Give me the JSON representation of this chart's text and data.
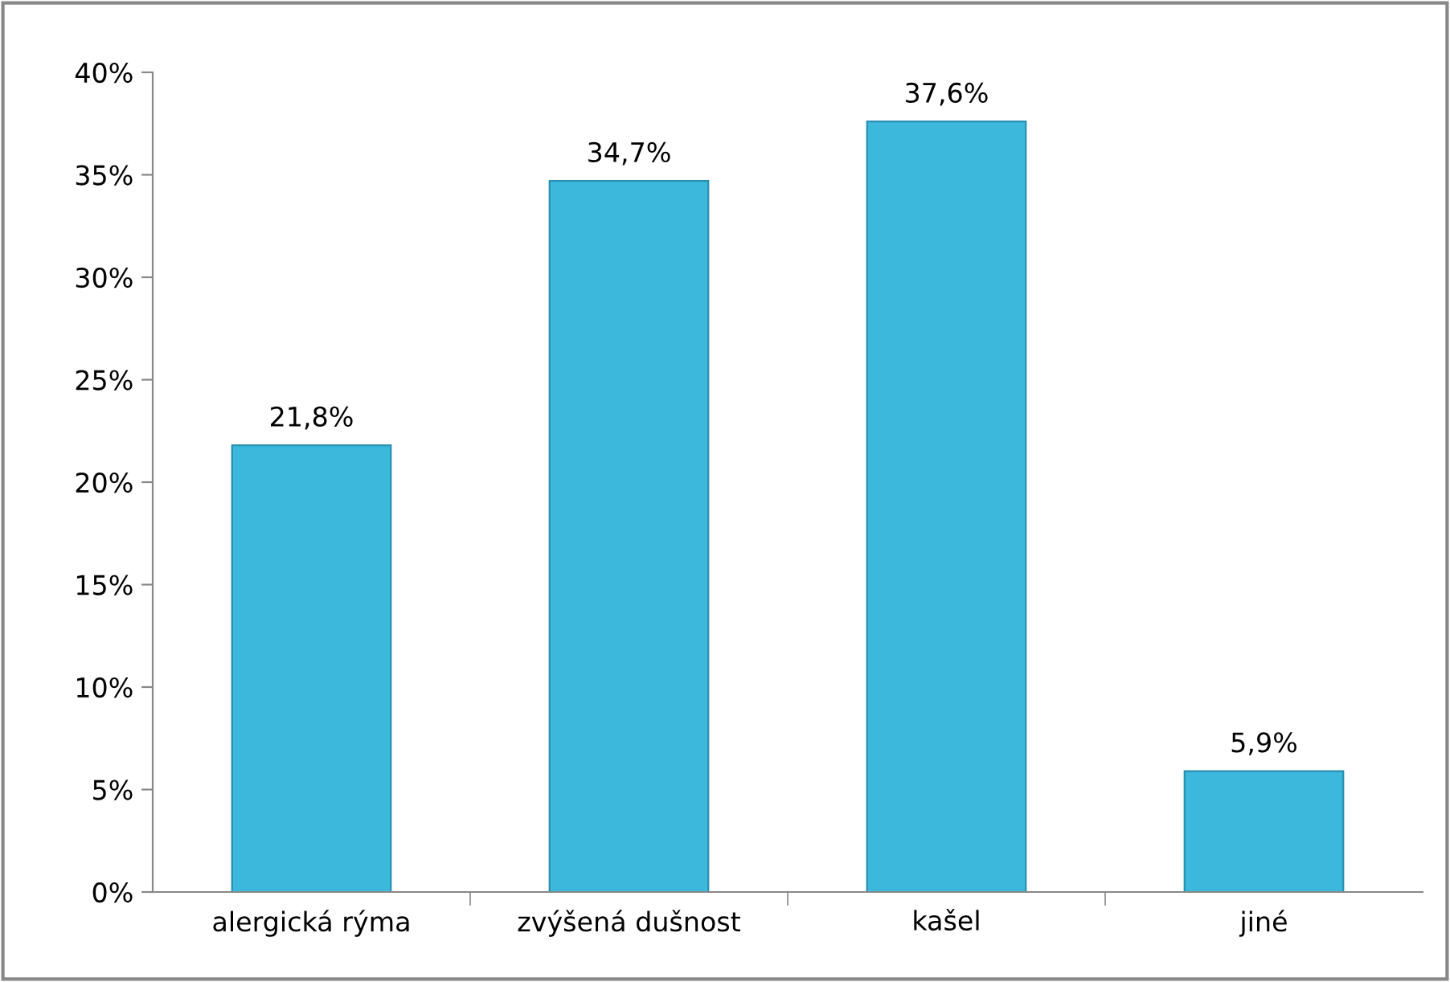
{
  "chart_data": {
    "type": "bar",
    "categories": [
      "alergická rýma",
      "zvýšená dušnost",
      "kašel",
      "jiné"
    ],
    "values": [
      21.8,
      34.7,
      37.6,
      5.9
    ],
    "value_labels": [
      "21,8%",
      "34,7%",
      "37,6%",
      "5,9%"
    ],
    "color": "#3bb8dc",
    "ylim": [
      0,
      40
    ],
    "yticks": [
      {
        "value": 0,
        "label": "0%"
      },
      {
        "value": 5,
        "label": "5%"
      },
      {
        "value": 10,
        "label": "10%"
      },
      {
        "value": 15,
        "label": "15%"
      },
      {
        "value": 20,
        "label": "20%"
      },
      {
        "value": 25,
        "label": "25%"
      },
      {
        "value": 30,
        "label": "30%"
      },
      {
        "value": 35,
        "label": "35%"
      },
      {
        "value": 40,
        "label": "40%"
      }
    ],
    "grid": false
  }
}
